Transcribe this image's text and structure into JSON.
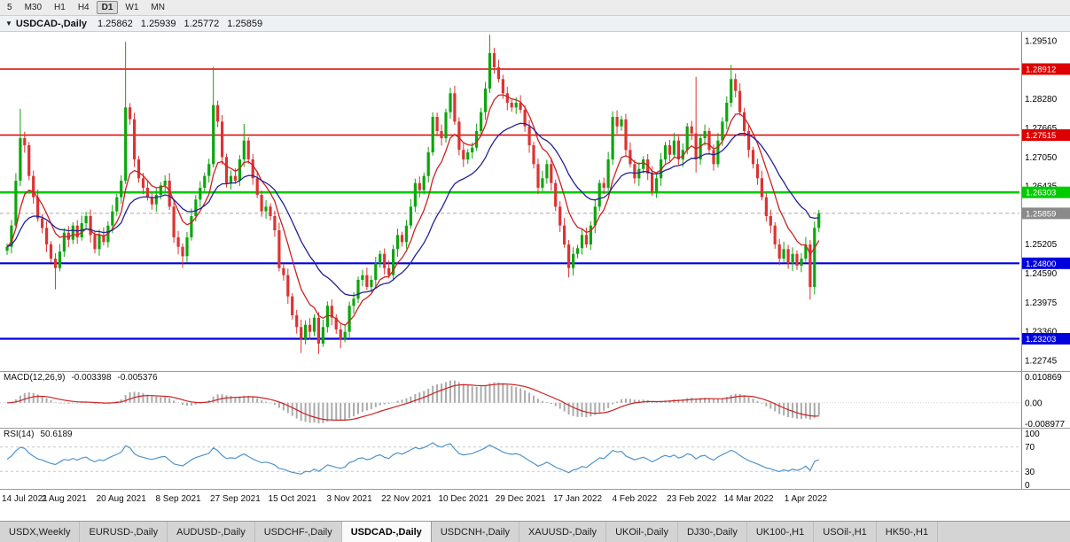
{
  "toolbar": {
    "timeframe_buttons": [
      "5",
      "M30",
      "H1",
      "H4",
      "D1",
      "W1",
      "MN"
    ],
    "active_timeframe": "D1"
  },
  "chart_header": {
    "dropdown_icon": "▼",
    "symbol": "USDCAD-,Daily",
    "open": "1.25862",
    "high": "1.25939",
    "low": "1.25772",
    "close": "1.25859"
  },
  "chart_data": {
    "type": "candlestick",
    "symbol": "USDCAD",
    "timeframe": "Daily",
    "title": "USDCAD-,Daily",
    "x_labels": [
      "14 Jul 2021",
      "2 Aug 2021",
      "20 Aug 2021",
      "8 Sep 2021",
      "27 Sep 2021",
      "15 Oct 2021",
      "3 Nov 2021",
      "22 Nov 2021",
      "10 Dec 2021",
      "29 Dec 2021",
      "17 Jan 2022",
      "4 Feb 2022",
      "23 Feb 2022",
      "14 Mar 2022",
      "1 Apr 2022"
    ],
    "bars_per_label": 13,
    "y_axis": {
      "min": 1.225,
      "max": 1.297,
      "ticks": [
        {
          "label": "1.29510",
          "value": 1.2951
        },
        {
          "label": "1.28280",
          "value": 1.2828
        },
        {
          "label": "1.27665",
          "value": 1.27665
        },
        {
          "label": "1.27050",
          "value": 1.2705
        },
        {
          "label": "1.26435",
          "value": 1.26435
        },
        {
          "label": "1.25205",
          "value": 1.25205
        },
        {
          "label": "1.24590",
          "value": 1.2459
        },
        {
          "label": "1.23975",
          "value": 1.23975
        },
        {
          "label": "1.23360",
          "value": 1.2336
        },
        {
          "label": "1.22745",
          "value": 1.22745
        }
      ]
    },
    "levels": [
      {
        "label": "1.28912",
        "price": 1.28912,
        "color": "#dd0000",
        "width": 1.6
      },
      {
        "label": "1.27515",
        "price": 1.27515,
        "color": "#dd0000",
        "width": 1.6
      },
      {
        "label": "1.26303",
        "price": 1.26303,
        "color": "#00cc00",
        "width": 2.6
      },
      {
        "label": "1.24800",
        "price": 1.248,
        "color": "#0000dd",
        "width": 2.2
      },
      {
        "label": "1.23203",
        "price": 1.23203,
        "color": "#0000dd",
        "width": 2.2
      }
    ],
    "current_price": {
      "label": "1.25859",
      "value": 1.25859,
      "badge_color": "#8a8a8a"
    },
    "colors": {
      "up": "#0ea50e",
      "down": "#dd3333"
    },
    "moving_averages": [
      {
        "name": "fast",
        "period": 8,
        "color": "#cc2222"
      },
      {
        "name": "slow",
        "period": 21,
        "color": "#222299"
      }
    ],
    "candles": {
      "note": "closes estimated from chart; open = previous close; highs/lows approximated, explicit extremes below",
      "closes": [
        1.2515,
        1.256,
        1.2655,
        1.2745,
        1.273,
        1.2665,
        1.262,
        1.2575,
        1.2555,
        1.252,
        1.249,
        1.247,
        1.2505,
        1.2545,
        1.253,
        1.256,
        1.2535,
        1.2565,
        1.258,
        1.254,
        1.251,
        1.254,
        1.2525,
        1.256,
        1.259,
        1.262,
        1.2655,
        1.281,
        1.2785,
        1.27,
        1.266,
        1.264,
        1.262,
        1.2605,
        1.2625,
        1.2645,
        1.2655,
        1.26,
        1.2535,
        1.2515,
        1.2495,
        1.2535,
        1.258,
        1.2615,
        1.264,
        1.2665,
        1.269,
        1.2815,
        1.278,
        1.2705,
        1.265,
        1.2665,
        1.2655,
        1.27,
        1.274,
        1.27,
        1.266,
        1.2625,
        1.259,
        1.26,
        1.258,
        1.255,
        1.247,
        1.2455,
        1.241,
        1.237,
        1.2345,
        1.232,
        1.235,
        1.2335,
        1.2365,
        1.231,
        1.2345,
        1.239,
        1.2365,
        1.234,
        1.232,
        1.2335,
        1.239,
        1.2405,
        1.2445,
        1.2455,
        1.243,
        1.2445,
        1.248,
        1.25,
        1.247,
        1.2455,
        1.251,
        1.254,
        1.2525,
        1.256,
        1.26,
        1.265,
        1.2635,
        1.2665,
        1.2715,
        1.279,
        1.276,
        1.2745,
        1.28,
        1.284,
        1.278,
        1.272,
        1.27,
        1.2715,
        1.2725,
        1.276,
        1.28,
        1.285,
        1.2925,
        1.2895,
        1.287,
        1.284,
        1.282,
        1.281,
        1.282,
        1.2805,
        1.277,
        1.273,
        1.269,
        1.264,
        1.266,
        1.269,
        1.265,
        1.26,
        1.256,
        1.252,
        1.247,
        1.25,
        1.2512,
        1.254,
        1.252,
        1.256,
        1.26,
        1.265,
        1.264,
        1.27,
        1.279,
        1.277,
        1.2785,
        1.272,
        1.269,
        1.266,
        1.268,
        1.27,
        1.267,
        1.263,
        1.266,
        1.27,
        1.273,
        1.271,
        1.274,
        1.27,
        1.272,
        1.277,
        1.2755,
        1.27,
        1.2745,
        1.276,
        1.272,
        1.269,
        1.274,
        1.278,
        1.282,
        1.287,
        1.2845,
        1.28,
        1.276,
        1.272,
        1.269,
        1.266,
        1.262,
        1.258,
        1.256,
        1.252,
        1.249,
        1.251,
        1.248,
        1.25,
        1.2475,
        1.249,
        1.252,
        1.243,
        1.2555,
        1.2586
      ],
      "extremes": {
        "3": {
          "h": 1.2807
        },
        "11": {
          "l": 1.2425
        },
        "27": {
          "h": 1.2949
        },
        "40": {
          "l": 1.247
        },
        "47": {
          "h": 1.2896
        },
        "54": {
          "h": 1.2775
        },
        "67": {
          "l": 1.229
        },
        "71": {
          "l": 1.2288
        },
        "76": {
          "l": 1.23
        },
        "97": {
          "h": 1.28
        },
        "101": {
          "h": 1.2852
        },
        "110": {
          "h": 1.2964
        },
        "128": {
          "l": 1.245
        },
        "138": {
          "h": 1.2802
        },
        "157": {
          "h": 1.2875,
          "l": 1.2672
        },
        "165": {
          "h": 1.29
        },
        "183": {
          "l": 1.2403
        }
      }
    },
    "macd": {
      "label": "MACD(12,26,9)",
      "value_main": "-0.003398",
      "value_signal": "-0.005376",
      "ticks": [
        {
          "label": "0.010869",
          "value": 0.010869
        },
        {
          "label": "0.00",
          "value": 0
        },
        {
          "label": "-0.008977",
          "value": -0.008977
        }
      ],
      "range": [
        -0.0105,
        0.0125
      ],
      "histogram_color": "#ababab",
      "signal_color": "#cc2222"
    },
    "rsi": {
      "label": "RSI(14)",
      "value": "50.6189",
      "ticks": [
        {
          "label": "100",
          "value": 100
        },
        {
          "label": "70",
          "value": 70
        },
        {
          "label": "30",
          "value": 30
        },
        {
          "label": "0",
          "value": 0
        }
      ],
      "levels": [
        70,
        30
      ],
      "line_color": "#4f94cd",
      "range": [
        0,
        100
      ]
    }
  },
  "tabs": [
    {
      "label": "USDX,Weekly",
      "active": false
    },
    {
      "label": "EURUSD-,Daily",
      "active": false
    },
    {
      "label": "AUDUSD-,Daily",
      "active": false
    },
    {
      "label": "USDCHF-,Daily",
      "active": false
    },
    {
      "label": "USDCAD-,Daily",
      "active": true
    },
    {
      "label": "USDCNH-,Daily",
      "active": false
    },
    {
      "label": "XAUUSD-,Daily",
      "active": false
    },
    {
      "label": "UKOil-,Daily",
      "active": false
    },
    {
      "label": "DJ30-,Daily",
      "active": false
    },
    {
      "label": "UK100-,H1",
      "active": false
    },
    {
      "label": "USOil-,H1",
      "active": false
    },
    {
      "label": "HK50-,H1",
      "active": false
    }
  ]
}
